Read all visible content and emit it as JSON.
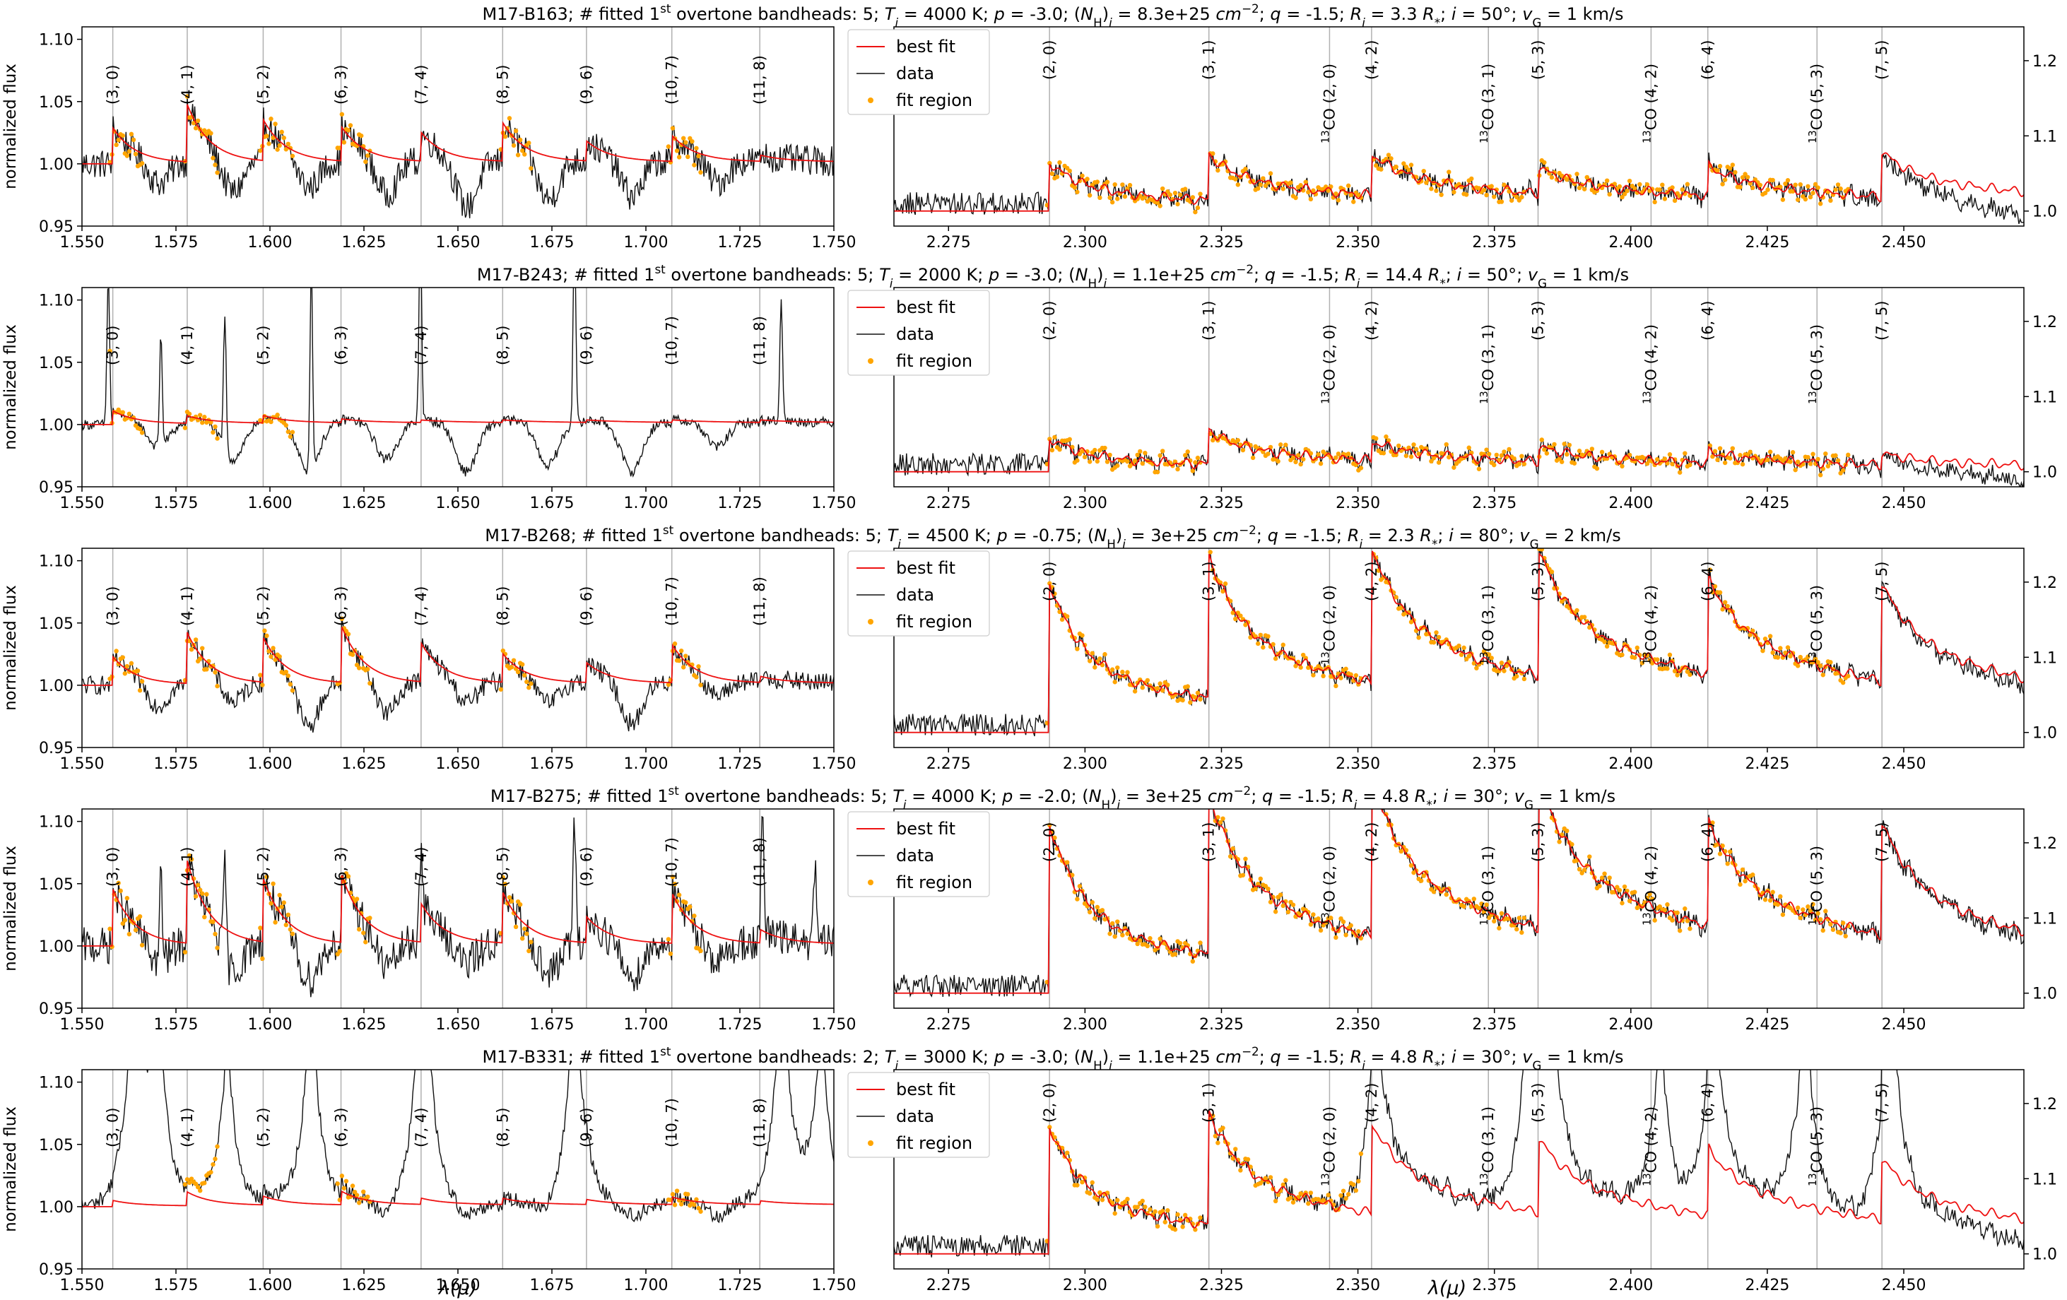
{
  "figure": {
    "xlabel": "λ(μ)",
    "ylabel": "normalized flux",
    "legend": [
      "best fit",
      "data",
      "fit region"
    ],
    "colors": {
      "fit": "#ee1111",
      "data": "#111111",
      "fit_region": "#ffa500",
      "bandhead_line": "#b0b0b0"
    }
  },
  "chart_data": [
    {
      "type": "line",
      "title": "M17-B163; # fitted 1st overtone bandheads: 5; Ti = 4000 K; p = -3.0; (NH)i = 8.3e+25 cm−2; q = -1.5; Ri = 3.3 R*; i = 50°; vG = 1 km/s",
      "title_html": "M17-B163; # fitted 1<tspan baseline-shift=\"super\" font-size=\"70%\">st</tspan> overtone bandheads: 5; <tspan font-style=\"italic\">T</tspan><tspan baseline-shift=\"sub\" font-size=\"70%\" font-style=\"italic\">i</tspan> = 4000 K; <tspan font-style=\"italic\">p</tspan> = -3.0; (<tspan font-style=\"italic\">N</tspan><tspan baseline-shift=\"sub\" font-size=\"70%\">H</tspan>)<tspan baseline-shift=\"sub\" font-size=\"70%\" font-style=\"italic\">i</tspan> = 8.3e+25 <tspan font-style=\"italic\">cm</tspan><tspan baseline-shift=\"super\" font-size=\"70%\">−2</tspan>; <tspan font-style=\"italic\">q</tspan> = -1.5; <tspan font-style=\"italic\">R</tspan><tspan baseline-shift=\"sub\" font-size=\"70%\" font-style=\"italic\">i</tspan> = 3.3 <tspan font-style=\"italic\">R</tspan><tspan baseline-shift=\"sub\" font-size=\"70%\">*</tspan>; <tspan font-style=\"italic\">i</tspan> = 50°; <tspan font-style=\"italic\">v</tspan><tspan baseline-shift=\"sub\" font-size=\"70%\">G</tspan> = 1 km/s",
      "left": {
        "xlim": [
          1.55,
          1.75
        ],
        "ylim": [
          0.95,
          1.11
        ],
        "peaks": [
          0.028,
          0.045,
          0.032,
          0.027,
          0.022,
          0.03,
          0.015,
          0.02,
          0.004
        ],
        "noise": 0.012,
        "dips": [
          0.02,
          0.03,
          0.025,
          0.03,
          0.04,
          0.035,
          0.03,
          0.02
        ],
        "fitidx": [
          0,
          1,
          2,
          3,
          5,
          7
        ]
      },
      "right": {
        "xlim": [
          2.265,
          2.472
        ],
        "ylim": [
          0.98,
          1.245
        ],
        "peaks": [
          0.065,
          0.06,
          0.055,
          0.035,
          0.04,
          0.06
        ],
        "noise": 0.012,
        "fitidx": [
          0,
          1,
          2,
          3,
          4
        ],
        "tailcorr": 0.3
      }
    },
    {
      "type": "line",
      "title": "M17-B243; # fitted 1st overtone bandheads: 5; Ti = 2000 K; p = -3.0; (NH)i = 1.1e+25 cm−2; q = -1.5; Ri = 14.4 R*; i = 50°; vG = 1 km/s",
      "title_html": "M17-B243; # fitted 1<tspan baseline-shift=\"super\" font-size=\"70%\">st</tspan> overtone bandheads: 5; <tspan font-style=\"italic\">T</tspan><tspan baseline-shift=\"sub\" font-size=\"70%\" font-style=\"italic\">i</tspan> = 2000 K; <tspan font-style=\"italic\">p</tspan> = -3.0; (<tspan font-style=\"italic\">N</tspan><tspan baseline-shift=\"sub\" font-size=\"70%\">H</tspan>)<tspan baseline-shift=\"sub\" font-size=\"70%\" font-style=\"italic\">i</tspan> = 1.1e+25 <tspan font-style=\"italic\">cm</tspan><tspan baseline-shift=\"super\" font-size=\"70%\">−2</tspan>; <tspan font-style=\"italic\">q</tspan> = -1.5; <tspan font-style=\"italic\">R</tspan><tspan baseline-shift=\"sub\" font-size=\"70%\" font-style=\"italic\">i</tspan> = 14.4 <tspan font-style=\"italic\">R</tspan><tspan baseline-shift=\"sub\" font-size=\"70%\">*</tspan>; <tspan font-style=\"italic\">i</tspan> = 50°; <tspan font-style=\"italic\">v</tspan><tspan baseline-shift=\"sub\" font-size=\"70%\">G</tspan> = 1 km/s",
      "left": {
        "xlim": [
          1.55,
          1.75
        ],
        "ylim": [
          0.95,
          1.11
        ],
        "peaks": [
          0.01,
          0.005,
          0.005,
          0.002,
          0.001,
          0.001,
          0.001,
          0.001,
          0.001
        ],
        "noise": 0.004,
        "dips": [
          0.02,
          0.03,
          0.04,
          0.03,
          0.04,
          0.035,
          0.04,
          0.02
        ],
        "fitidx": [
          0,
          1,
          2
        ],
        "spikes": [
          [
            1.557,
            0.12
          ],
          [
            1.571,
            0.09
          ],
          [
            1.588,
            0.11
          ],
          [
            1.611,
            0.16
          ],
          [
            1.64,
            0.16
          ],
          [
            1.681,
            0.16
          ],
          [
            1.736,
            0.1
          ]
        ]
      },
      "right": {
        "xlim": [
          2.265,
          2.472
        ],
        "ylim": [
          0.98,
          1.245
        ],
        "peaks": [
          0.045,
          0.045,
          0.025,
          0.02,
          0.015,
          0.015
        ],
        "noise": 0.01,
        "fitidx": [
          0,
          1,
          2,
          3,
          4
        ],
        "tailcorr": 0.2
      }
    },
    {
      "type": "line",
      "title": "M17-B268; # fitted 1st overtone bandheads: 5; Ti = 4500 K; p = -0.75; (NH)i = 3e+25 cm−2; q = -1.5; Ri = 2.3 R*; i = 80°; vG = 2 km/s",
      "title_html": "M17-B268; # fitted 1<tspan baseline-shift=\"super\" font-size=\"70%\">st</tspan> overtone bandheads: 5; <tspan font-style=\"italic\">T</tspan><tspan baseline-shift=\"sub\" font-size=\"70%\" font-style=\"italic\">i</tspan> = 4500 K; <tspan font-style=\"italic\">p</tspan> = -0.75; (<tspan font-style=\"italic\">N</tspan><tspan baseline-shift=\"sub\" font-size=\"70%\">H</tspan>)<tspan baseline-shift=\"sub\" font-size=\"70%\" font-style=\"italic\">i</tspan> = 3e+25 <tspan font-style=\"italic\">cm</tspan><tspan baseline-shift=\"super\" font-size=\"70%\">−2</tspan>; <tspan font-style=\"italic\">q</tspan> = -1.5; <tspan font-style=\"italic\">R</tspan><tspan baseline-shift=\"sub\" font-size=\"70%\" font-style=\"italic\">i</tspan> = 2.3 <tspan font-style=\"italic\">R</tspan><tspan baseline-shift=\"sub\" font-size=\"70%\">*</tspan>; <tspan font-style=\"italic\">i</tspan> = 80°; <tspan font-style=\"italic\">v</tspan><tspan baseline-shift=\"sub\" font-size=\"70%\">G</tspan> = 2 km/s",
      "left": {
        "xlim": [
          1.55,
          1.75
        ],
        "ylim": [
          0.95,
          1.11
        ],
        "peaks": [
          0.022,
          0.04,
          0.035,
          0.045,
          0.03,
          0.022,
          0.015,
          0.03,
          0.004
        ],
        "noise": 0.008,
        "dips": [
          0.02,
          0.02,
          0.04,
          0.03,
          0.02,
          0.02,
          0.035,
          0.015
        ],
        "fitidx": [
          0,
          1,
          2,
          3,
          5,
          7
        ]
      },
      "right": {
        "xlim": [
          2.265,
          2.472
        ],
        "ylim": [
          0.98,
          1.245
        ],
        "peaks": [
          0.2,
          0.19,
          0.18,
          0.17,
          0.13,
          0.13
        ],
        "noise": 0.01,
        "fitidx": [
          0,
          1,
          2,
          3,
          4
        ],
        "tailcorr": 0.08
      }
    },
    {
      "type": "line",
      "title": "M17-B275; # fitted 1st overtone bandheads: 5; Ti = 4000 K; p = -2.0; (NH)i = 3e+25 cm−2; q = -1.5; Ri = 4.8 R*; i = 30°; vG = 1 km/s",
      "title_html": "M17-B275; # fitted 1<tspan baseline-shift=\"super\" font-size=\"70%\">st</tspan> overtone bandheads: 5; <tspan font-style=\"italic\">T</tspan><tspan baseline-shift=\"sub\" font-size=\"70%\" font-style=\"italic\">i</tspan> = 4000 K; <tspan font-style=\"italic\">p</tspan> = -2.0; (<tspan font-style=\"italic\">N</tspan><tspan baseline-shift=\"sub\" font-size=\"70%\">H</tspan>)<tspan baseline-shift=\"sub\" font-size=\"70%\" font-style=\"italic\">i</tspan> = 3e+25 <tspan font-style=\"italic\">cm</tspan><tspan baseline-shift=\"super\" font-size=\"70%\">−2</tspan>; <tspan font-style=\"italic\">q</tspan> = -1.5; <tspan font-style=\"italic\">R</tspan><tspan baseline-shift=\"sub\" font-size=\"70%\" font-style=\"italic\">i</tspan> = 4.8 <tspan font-style=\"italic\">R</tspan><tspan baseline-shift=\"sub\" font-size=\"70%\">*</tspan>; <tspan font-style=\"italic\">i</tspan> = 30°; <tspan font-style=\"italic\">v</tspan><tspan baseline-shift=\"sub\" font-size=\"70%\">G</tspan> = 1 km/s",
      "left": {
        "xlim": [
          1.55,
          1.75
        ],
        "ylim": [
          0.95,
          1.11
        ],
        "peaks": [
          0.045,
          0.065,
          0.05,
          0.055,
          0.03,
          0.04,
          0.02,
          0.04,
          0.01
        ],
        "noise": 0.015,
        "dips": [
          0.02,
          0.03,
          0.035,
          0.025,
          0.02,
          0.03,
          0.03,
          0.02
        ],
        "fitidx": [
          0,
          1,
          2,
          3,
          5,
          7
        ],
        "spikes": [
          [
            1.571,
            0.07
          ],
          [
            1.588,
            0.08
          ],
          [
            1.64,
            0.07
          ],
          [
            1.681,
            0.1
          ],
          [
            1.731,
            0.09
          ],
          [
            1.745,
            0.06
          ]
        ]
      },
      "right": {
        "xlim": [
          2.265,
          2.472
        ],
        "ylim": [
          0.98,
          1.245
        ],
        "peaks": [
          0.225,
          0.215,
          0.21,
          0.2,
          0.14,
          0.15
        ],
        "noise": 0.012,
        "fitidx": [
          0,
          1,
          2,
          3,
          4
        ],
        "tailcorr": 0.06
      }
    },
    {
      "type": "line",
      "title": "M17-B331; # fitted 1st overtone bandheads: 2; Ti = 3000 K; p = -3.0; (NH)i = 1.1e+25 cm−2; q = -1.5; Ri = 4.8 R*; i = 30°; vG = 1 km/s",
      "title_html": "M17-B331; # fitted 1<tspan baseline-shift=\"super\" font-size=\"70%\">st</tspan> overtone bandheads: 2; <tspan font-style=\"italic\">T</tspan><tspan baseline-shift=\"sub\" font-size=\"70%\" font-style=\"italic\">i</tspan> = 3000 K; <tspan font-style=\"italic\">p</tspan> = -3.0; (<tspan font-style=\"italic\">N</tspan><tspan baseline-shift=\"sub\" font-size=\"70%\">H</tspan>)<tspan baseline-shift=\"sub\" font-size=\"70%\" font-style=\"italic\">i</tspan> = 1.1e+25 <tspan font-style=\"italic\">cm</tspan><tspan baseline-shift=\"super\" font-size=\"70%\">−2</tspan>; <tspan font-style=\"italic\">q</tspan> = -1.5; <tspan font-style=\"italic\">R</tspan><tspan baseline-shift=\"sub\" font-size=\"70%\" font-style=\"italic\">i</tspan> = 4.8 <tspan font-style=\"italic\">R</tspan><tspan baseline-shift=\"sub\" font-size=\"70%\">*</tspan>; <tspan font-style=\"italic\">i</tspan> = 30°; <tspan font-style=\"italic\">v</tspan><tspan baseline-shift=\"sub\" font-size=\"70%\">G</tspan> = 1 km/s",
      "left": {
        "xlim": [
          1.55,
          1.75
        ],
        "ylim": [
          0.95,
          1.11
        ],
        "peaks": [
          0.004,
          0.01,
          0.006,
          0.01,
          0.004,
          0.004,
          0.003,
          0.005,
          0.002
        ],
        "noise": 0.006,
        "dips": [
          0.01,
          0.01,
          0.01,
          0.01,
          0.01,
          0.01,
          0.01,
          0.01
        ],
        "fitidx": [
          1,
          3,
          7
        ],
        "emis": [
          [
            1.5639,
            0.2
          ],
          [
            1.5701,
            0.2
          ],
          [
            1.5887,
            0.15
          ],
          [
            1.6109,
            0.2
          ],
          [
            1.6407,
            0.25
          ],
          [
            1.6811,
            0.2
          ],
          [
            1.7362,
            0.2
          ],
          [
            1.7466,
            0.15
          ]
        ]
      },
      "right": {
        "xlim": [
          2.265,
          2.472
        ],
        "ylim": [
          0.98,
          1.245
        ],
        "peaks": [
          0.17,
          0.15,
          0.12,
          0.1,
          0.09,
          0.08
        ],
        "noise": 0.012,
        "fitidx": [
          0,
          1
        ],
        "tailcorr": 0.3,
        "spikes": [
          [
            2.3527,
            0.22
          ],
          [
            2.3814,
            0.3
          ],
          [
            2.3845,
            0.35
          ],
          [
            2.4054,
            0.25
          ],
          [
            2.4148,
            0.3
          ],
          [
            2.4319,
            0.3
          ],
          [
            2.4472,
            0.35
          ]
        ]
      }
    }
  ],
  "panels": {
    "left_bandheads": [
      {
        "label": "(3, 0)",
        "x": 1.5582
      },
      {
        "label": "(4, 1)",
        "x": 1.578
      },
      {
        "label": "(5, 2)",
        "x": 1.5982
      },
      {
        "label": "(6, 3)",
        "x": 1.6189
      },
      {
        "label": "(7, 4)",
        "x": 1.6402
      },
      {
        "label": "(8, 5)",
        "x": 1.6619
      },
      {
        "label": "(9, 6)",
        "x": 1.6842
      },
      {
        "label": "(10, 7)",
        "x": 1.7069
      },
      {
        "label": "(11, 8)",
        "x": 1.7303
      }
    ],
    "right_bandheads": [
      {
        "label": "(2, 0)",
        "x": 2.2935,
        "iso": false
      },
      {
        "label": "(3, 1)",
        "x": 2.3227,
        "iso": false
      },
      {
        "label": "CO (2, 0)",
        "x": 2.3448,
        "iso": true
      },
      {
        "label": "(4, 2)",
        "x": 2.3525,
        "iso": false
      },
      {
        "label": "CO (3, 1)",
        "x": 2.3739,
        "iso": true
      },
      {
        "label": "(5, 3)",
        "x": 2.383,
        "iso": false
      },
      {
        "label": "CO (4, 2)",
        "x": 2.4037,
        "iso": true
      },
      {
        "label": "(6, 4)",
        "x": 2.4141,
        "iso": false
      },
      {
        "label": "CO (5, 3)",
        "x": 2.4341,
        "iso": true
      },
      {
        "label": "(7, 5)",
        "x": 2.446,
        "iso": false
      }
    ],
    "iso_prefix": "13",
    "left_xticks": [
      "1.550",
      "1.575",
      "1.600",
      "1.625",
      "1.650",
      "1.675",
      "1.700",
      "1.725",
      "1.750"
    ],
    "left_yticks": [
      "0.95",
      "1.00",
      "1.05",
      "1.10"
    ],
    "right_xticks": [
      "2.275",
      "2.300",
      "2.325",
      "2.350",
      "2.375",
      "2.400",
      "2.425",
      "2.450"
    ],
    "right_yticks": [
      "1.0",
      "1.1",
      "1.2"
    ]
  }
}
